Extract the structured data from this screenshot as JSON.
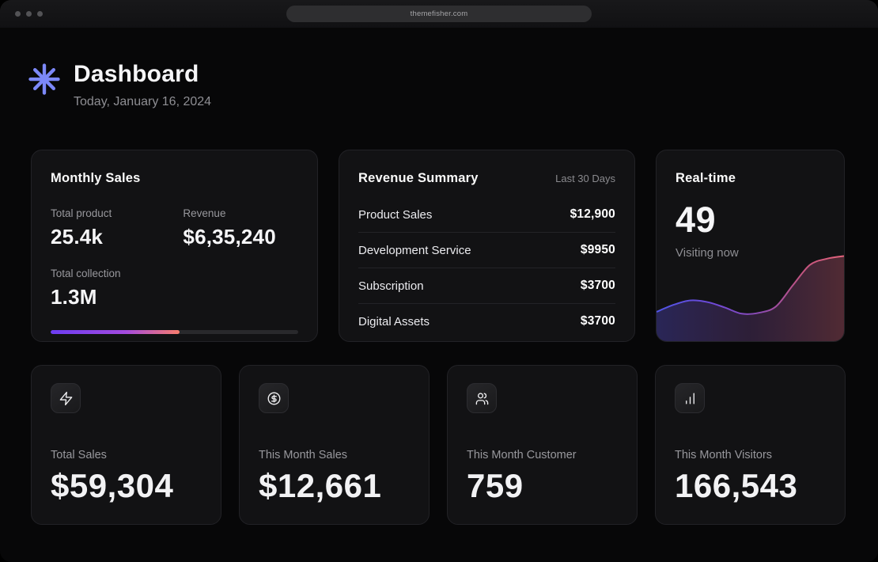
{
  "browser": {
    "url": "themefisher.com"
  },
  "header": {
    "title": "Dashboard",
    "subtitle": "Today, January 16, 2024"
  },
  "colors": {
    "accent_logo": "#7c88f8",
    "progress_gradient": [
      "#6c3df2",
      "#a34ade",
      "#f97d6d"
    ],
    "chart_line_gradient": [
      "#4f55e6",
      "#6e49d8",
      "#8d4bb4",
      "#c2547f",
      "#e4647c"
    ],
    "card_bg": "#121214",
    "page_bg": "#070708"
  },
  "monthly_sales": {
    "title": "Monthly Sales",
    "stats": [
      {
        "label": "Total product",
        "value": "25.4k"
      },
      {
        "label": "Revenue",
        "value": "$6,35,240"
      },
      {
        "label": "Total collection",
        "value": "1.3M"
      }
    ],
    "progress_percent": 52
  },
  "revenue_summary": {
    "title": "Revenue Summary",
    "period": "Last 30 Days",
    "rows": [
      {
        "label": "Product Sales",
        "value": "$12,900"
      },
      {
        "label": "Development Service",
        "value": "$9950"
      },
      {
        "label": "Subscription",
        "value": "$3700"
      },
      {
        "label": "Digital Assets",
        "value": "$3700"
      }
    ]
  },
  "realtime": {
    "title": "Real-time",
    "count": "49",
    "caption": "Visiting now"
  },
  "stat_cards": [
    {
      "icon": "zap-icon",
      "label": "Total Sales",
      "value": "$59,304"
    },
    {
      "icon": "dollar-circle-icon",
      "label": "This Month Sales",
      "value": "$12,661"
    },
    {
      "icon": "users-icon",
      "label": "This Month Customer",
      "value": "759"
    },
    {
      "icon": "bar-chart-icon",
      "label": "This Month Visitors",
      "value": "166,543"
    }
  ],
  "chart_data": {
    "type": "area",
    "title": "Real-time visitors sparkline",
    "x": [
      0,
      1,
      2,
      3,
      4,
      5,
      6,
      7,
      8,
      9,
      10,
      11
    ],
    "values": [
      33,
      41,
      46,
      44,
      38,
      31,
      32,
      39,
      63,
      86,
      93,
      96
    ],
    "ylim": [
      0,
      100
    ],
    "xlabel": "",
    "ylabel": "",
    "axes_hidden": true,
    "grid": false,
    "legend_position": "none",
    "line_width": 2
  }
}
